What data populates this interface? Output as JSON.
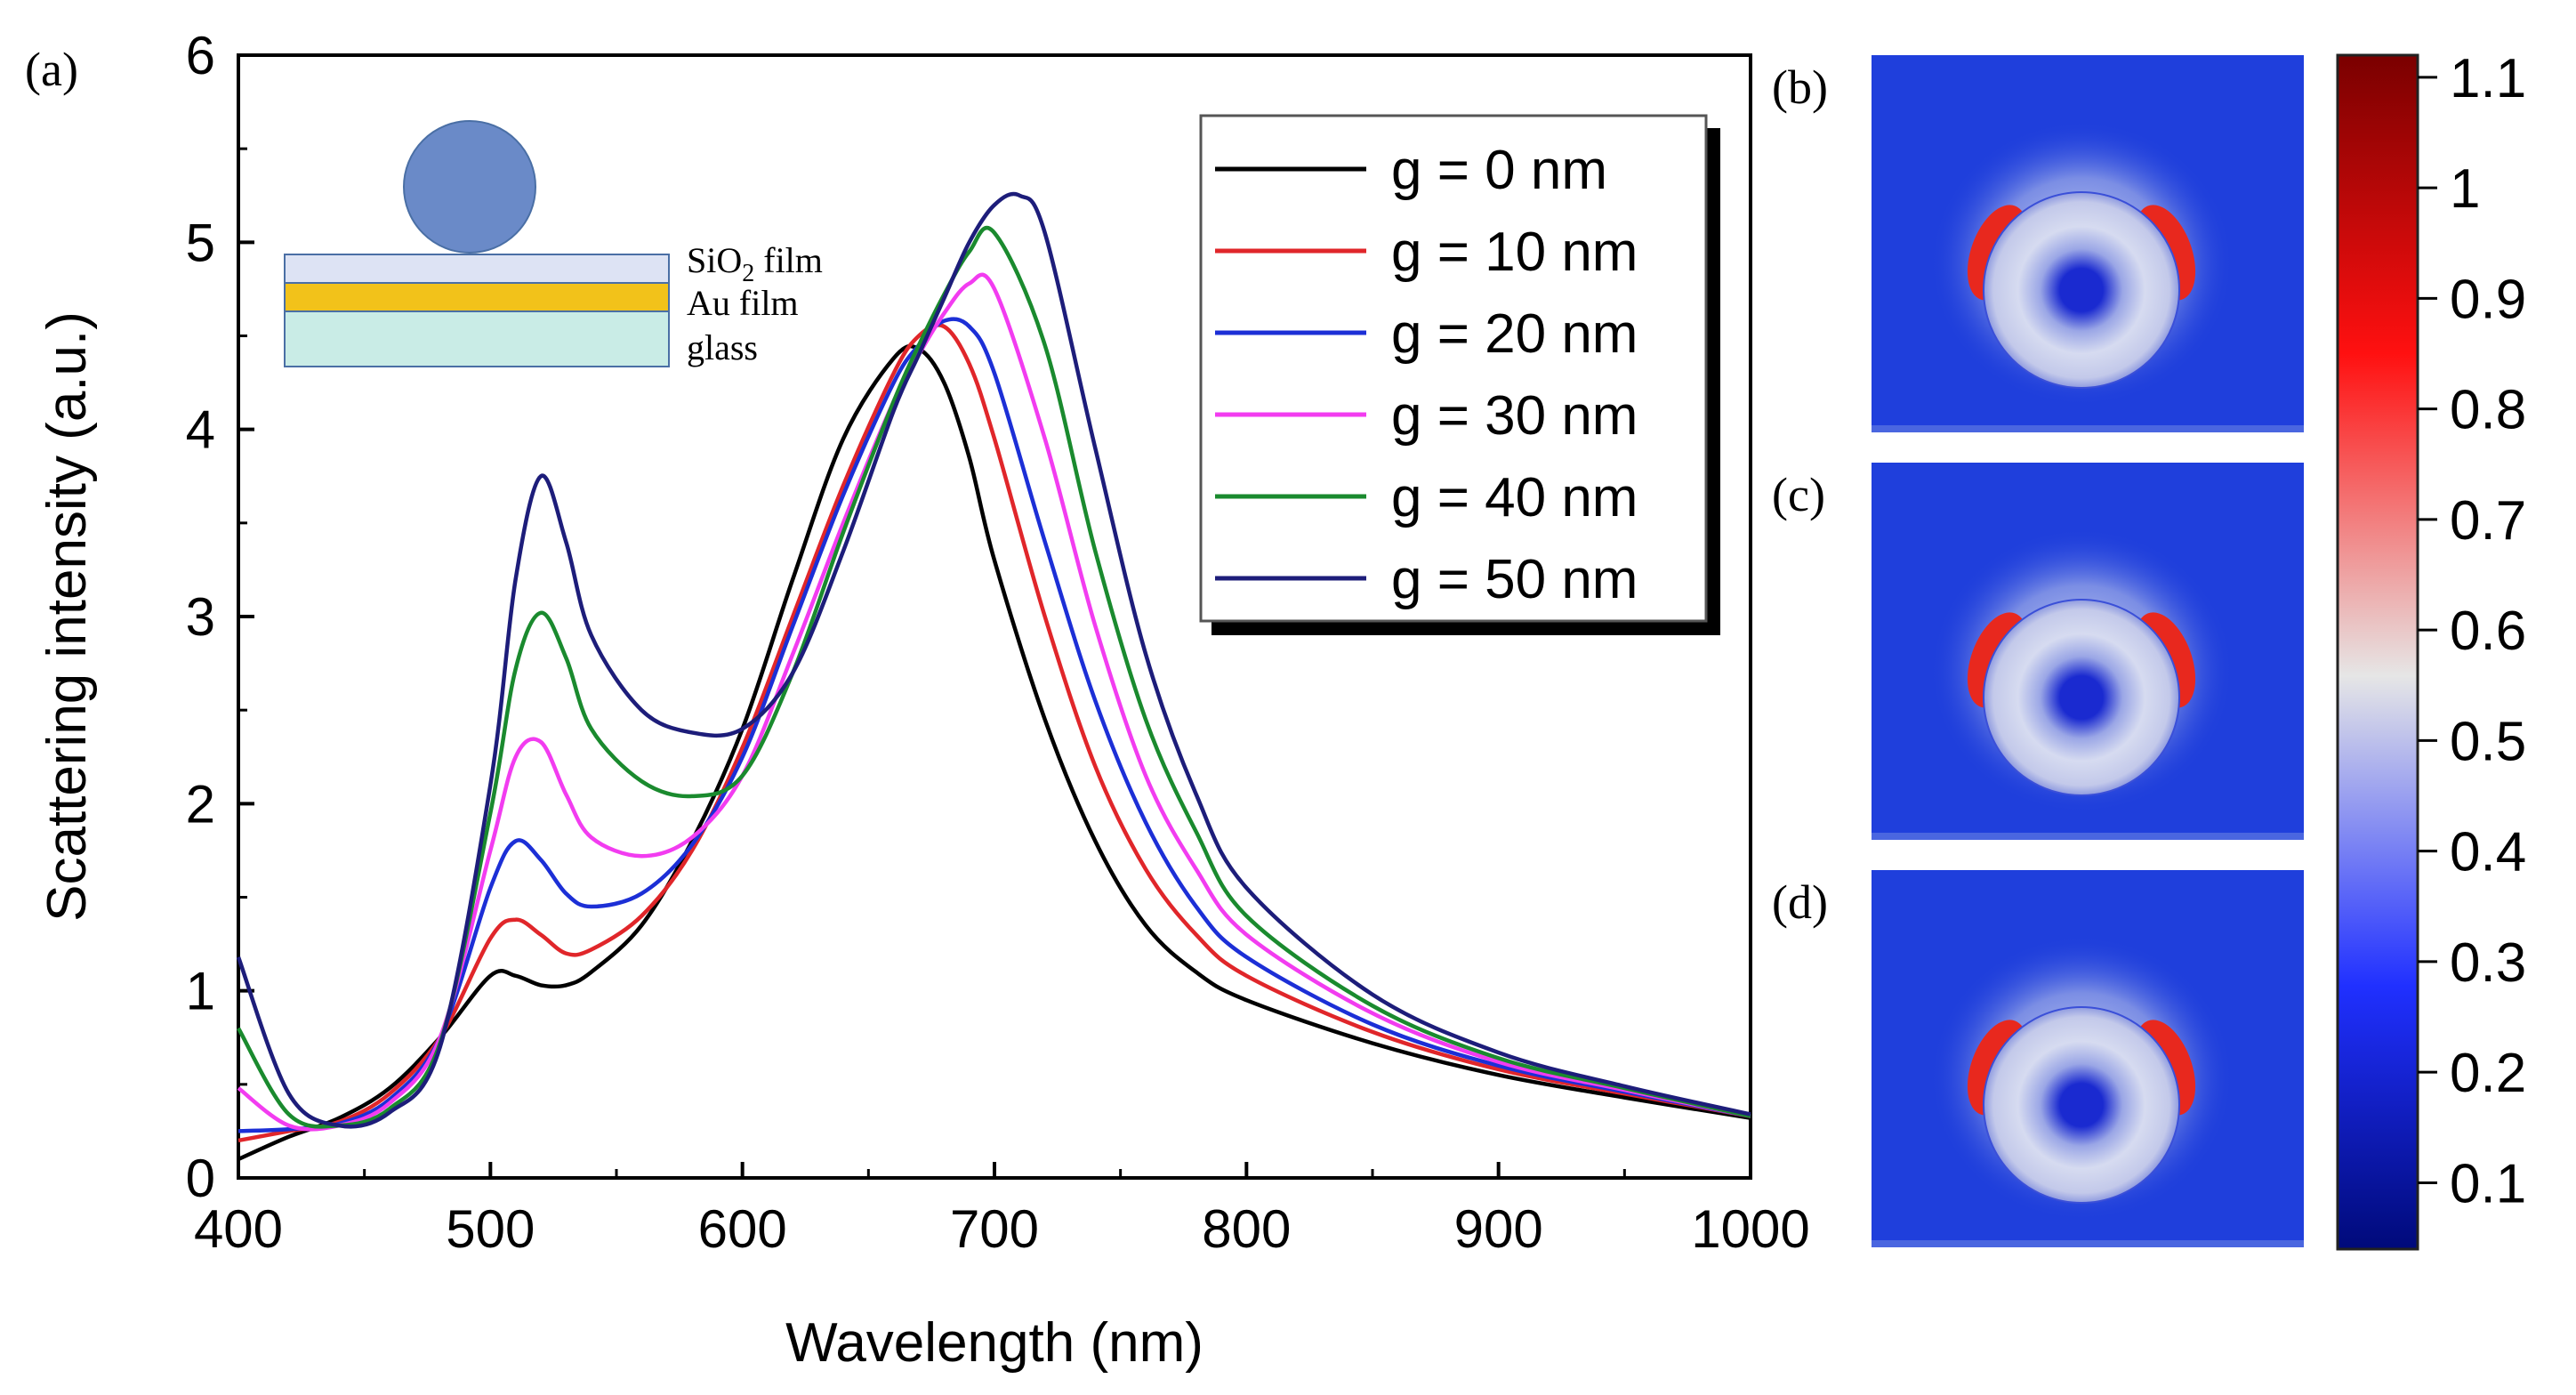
{
  "figure": {
    "panel_labels": [
      "(a)",
      "(b)",
      "(c)",
      "(d)"
    ]
  },
  "inset": {
    "layers": [
      "SiO",
      "Au film",
      "glass"
    ],
    "subscript": "2",
    "sio2_suffix": " film",
    "colors": {
      "sphere": "#6a8ac8",
      "sio2": "#dde3f4",
      "au": "#f2c21a",
      "glass": "#c9ece6",
      "outline": "#4a6fa5"
    }
  },
  "chart_data": {
    "type": "line",
    "title": "",
    "xlabel": "Wavelength (nm)",
    "ylabel": "Scattering intensity (a.u.)",
    "xlim": [
      400,
      1000
    ],
    "ylim": [
      0,
      6
    ],
    "xticks": [
      400,
      500,
      600,
      700,
      800,
      900,
      1000
    ],
    "yticks": [
      0,
      1,
      2,
      3,
      4,
      5,
      6
    ],
    "grid": false,
    "legend_position": "top-right",
    "series": [
      {
        "name": "g = 0 nm",
        "color": "#000000",
        "x": [
          400,
          420,
          440,
          460,
          480,
          500,
          510,
          520,
          530,
          540,
          560,
          580,
          600,
          620,
          640,
          660,
          670,
          680,
          690,
          700,
          720,
          740,
          760,
          780,
          800,
          850,
          900,
          950,
          1000
        ],
        "y": [
          0.1,
          0.22,
          0.32,
          0.48,
          0.75,
          1.08,
          1.08,
          1.03,
          1.03,
          1.1,
          1.35,
          1.8,
          2.4,
          3.2,
          3.95,
          4.38,
          4.43,
          4.25,
          3.85,
          3.3,
          2.45,
          1.8,
          1.35,
          1.1,
          0.95,
          0.72,
          0.55,
          0.43,
          0.32
        ]
      },
      {
        "name": "g = 10 nm",
        "color": "#e0262a",
        "x": [
          400,
          420,
          440,
          460,
          480,
          500,
          510,
          520,
          530,
          540,
          560,
          580,
          600,
          620,
          640,
          660,
          670,
          680,
          690,
          700,
          720,
          740,
          760,
          780,
          800,
          850,
          900,
          950,
          1000
        ],
        "y": [
          0.2,
          0.25,
          0.3,
          0.45,
          0.75,
          1.28,
          1.38,
          1.3,
          1.2,
          1.22,
          1.4,
          1.75,
          2.3,
          3.0,
          3.7,
          4.3,
          4.5,
          4.55,
          4.35,
          3.95,
          3.0,
          2.2,
          1.65,
          1.3,
          1.08,
          0.78,
          0.58,
          0.45,
          0.33
        ]
      },
      {
        "name": "g = 20 nm",
        "color": "#1c2fd6",
        "x": [
          400,
          420,
          440,
          460,
          480,
          500,
          510,
          520,
          530,
          540,
          560,
          580,
          600,
          620,
          640,
          660,
          670,
          680,
          690,
          700,
          720,
          740,
          760,
          780,
          800,
          850,
          900,
          950,
          1000
        ],
        "y": [
          0.25,
          0.26,
          0.29,
          0.42,
          0.75,
          1.55,
          1.8,
          1.7,
          1.52,
          1.45,
          1.52,
          1.78,
          2.25,
          2.95,
          3.65,
          4.25,
          4.45,
          4.58,
          4.55,
          4.3,
          3.4,
          2.55,
          1.9,
          1.45,
          1.18,
          0.82,
          0.6,
          0.46,
          0.33
        ]
      },
      {
        "name": "g = 30 nm",
        "color": "#f23cf0",
        "x": [
          400,
          420,
          440,
          460,
          480,
          500,
          510,
          520,
          530,
          540,
          560,
          580,
          600,
          620,
          640,
          660,
          670,
          680,
          690,
          700,
          720,
          740,
          760,
          780,
          800,
          850,
          900,
          950,
          1000
        ],
        "y": [
          0.48,
          0.28,
          0.28,
          0.4,
          0.75,
          1.75,
          2.25,
          2.33,
          2.05,
          1.82,
          1.72,
          1.82,
          2.15,
          2.8,
          3.5,
          4.15,
          4.4,
          4.62,
          4.78,
          4.75,
          3.95,
          2.95,
          2.15,
          1.65,
          1.3,
          0.88,
          0.62,
          0.47,
          0.33
        ]
      },
      {
        "name": "g = 40 nm",
        "color": "#1a8a2e",
        "x": [
          400,
          420,
          440,
          460,
          480,
          500,
          510,
          520,
          530,
          540,
          560,
          580,
          600,
          620,
          640,
          660,
          670,
          680,
          690,
          700,
          720,
          740,
          760,
          780,
          800,
          850,
          900,
          950,
          1000
        ],
        "y": [
          0.8,
          0.34,
          0.28,
          0.37,
          0.72,
          1.95,
          2.72,
          3.02,
          2.78,
          2.4,
          2.12,
          2.04,
          2.15,
          2.7,
          3.45,
          4.15,
          4.45,
          4.72,
          4.95,
          5.05,
          4.45,
          3.35,
          2.45,
          1.85,
          1.4,
          0.92,
          0.64,
          0.48,
          0.33
        ]
      },
      {
        "name": "g = 50 nm",
        "color": "#1d1d7a",
        "x": [
          400,
          420,
          440,
          460,
          480,
          500,
          510,
          520,
          530,
          540,
          560,
          580,
          600,
          620,
          640,
          660,
          670,
          680,
          690,
          700,
          710,
          720,
          740,
          760,
          780,
          800,
          850,
          900,
          950,
          1000
        ],
        "y": [
          1.18,
          0.45,
          0.28,
          0.35,
          0.7,
          2.1,
          3.2,
          3.75,
          3.4,
          2.9,
          2.5,
          2.38,
          2.4,
          2.7,
          3.35,
          4.1,
          4.4,
          4.7,
          5.0,
          5.2,
          5.25,
          5.05,
          3.9,
          2.8,
          2.05,
          1.55,
          0.98,
          0.67,
          0.49,
          0.34
        ]
      }
    ]
  },
  "colorbar": {
    "ticks": [
      "1.1",
      "1",
      "0.9",
      "0.8",
      "0.7",
      "0.6",
      "0.5",
      "0.4",
      "0.3",
      "0.2",
      "0.1"
    ],
    "tick_values": [
      1.1,
      1.0,
      0.9,
      0.8,
      0.7,
      0.6,
      0.5,
      0.4,
      0.3,
      0.2,
      0.1
    ],
    "range": [
      0.04,
      1.12
    ],
    "colors": {
      "top": "#7a0000",
      "upper": "#ff1010",
      "middle": "#e6e6e6",
      "lower": "#2030ff",
      "bottom": "#000a7a"
    }
  },
  "field_maps": {
    "background": "#1f3fdc",
    "glow": "#dfe3f2",
    "lobe": "#e8281e",
    "ring": "#cfd4ee",
    "core": "#1a2ad0"
  }
}
